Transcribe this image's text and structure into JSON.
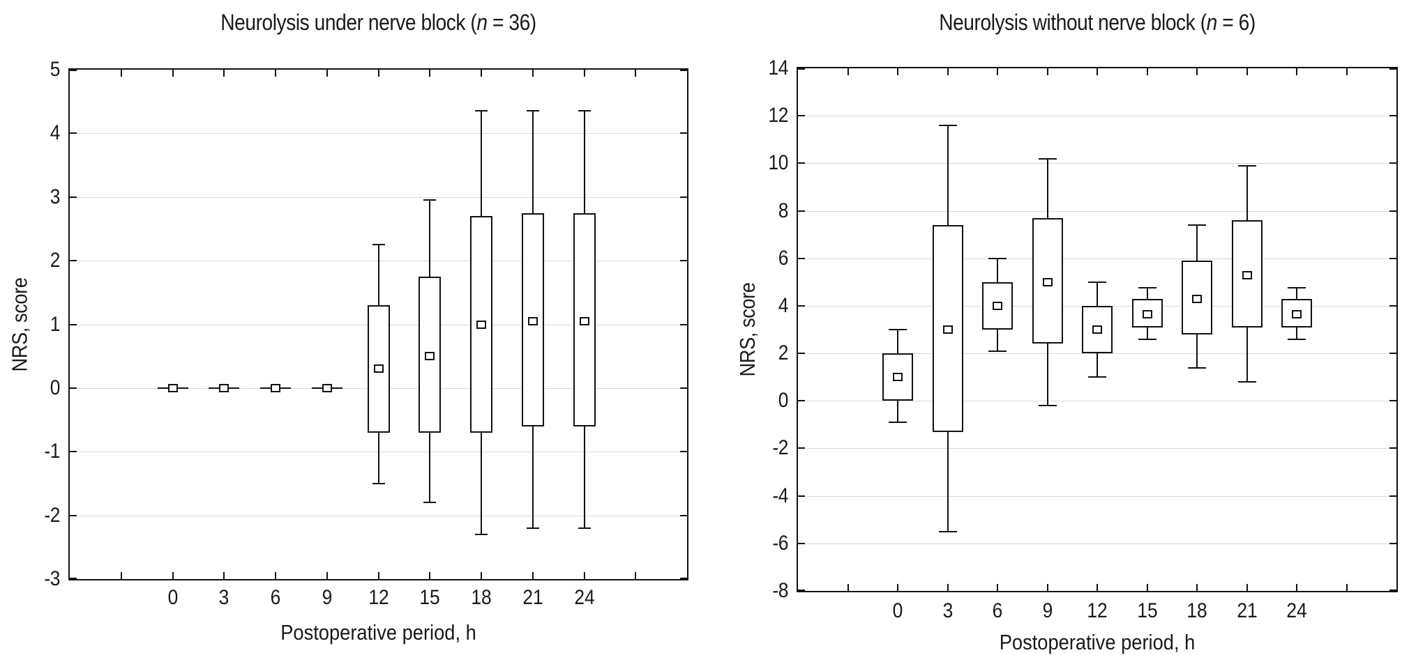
{
  "figure": {
    "background": "#ffffff",
    "line_color": "#111111",
    "grid_color": "#d9d9d9",
    "text_color": "#1a1a1a"
  },
  "chart_data": [
    {
      "type": "boxplot",
      "title": {
        "pre": "Neurolysis under nerve block (",
        "var": "n",
        "post": " = 36)"
      },
      "xlabel": "Postoperative period, h",
      "ylabel": "NRS, score",
      "ylim": [
        -3,
        5
      ],
      "ytick_step": 1,
      "grid": "horizontal",
      "legend": null,
      "ytick_labels": [
        "5",
        "4",
        "3",
        "2",
        "1",
        "0",
        "-1",
        "-2",
        "-3"
      ],
      "xtick_labels": [
        "0",
        "3",
        "6",
        "9",
        "12",
        "15",
        "18",
        "21",
        "24"
      ],
      "boxes": [
        {
          "x": "0",
          "low": 0,
          "q1": 0,
          "median": 0,
          "q3": 0,
          "high": 0
        },
        {
          "x": "3",
          "low": 0,
          "q1": 0,
          "median": 0,
          "q3": 0,
          "high": 0
        },
        {
          "x": "6",
          "low": 0,
          "q1": 0,
          "median": 0,
          "q3": 0,
          "high": 0
        },
        {
          "x": "9",
          "low": 0,
          "q1": 0,
          "median": 0,
          "q3": 0,
          "high": 0
        },
        {
          "x": "12",
          "low": -1.5,
          "q1": -0.7,
          "median": 0.3,
          "q3": 1.3,
          "high": 2.25
        },
        {
          "x": "15",
          "low": -1.8,
          "q1": -0.7,
          "median": 0.5,
          "q3": 1.75,
          "high": 2.95
        },
        {
          "x": "18",
          "low": -2.3,
          "q1": -0.7,
          "median": 1.0,
          "q3": 2.7,
          "high": 4.35
        },
        {
          "x": "21",
          "low": -2.2,
          "q1": -0.6,
          "median": 1.05,
          "q3": 2.75,
          "high": 4.35
        },
        {
          "x": "24",
          "low": -2.2,
          "q1": -0.6,
          "median": 1.05,
          "q3": 2.75,
          "high": 4.35
        }
      ]
    },
    {
      "type": "boxplot",
      "title": {
        "pre": "Neurolysis without nerve block (",
        "var": "n",
        "post": " = 6)"
      },
      "xlabel": "Postoperative period, h",
      "ylabel": "NRS, score",
      "ylim": [
        -8,
        14
      ],
      "ytick_step": 2,
      "grid": "horizontal",
      "legend": null,
      "ytick_labels": [
        "14",
        "12",
        "10",
        "8",
        "6",
        "4",
        "2",
        "0",
        "-2",
        "-4",
        "-6",
        "-8"
      ],
      "xtick_labels": [
        "0",
        "3",
        "6",
        "9",
        "12",
        "15",
        "18",
        "21",
        "24"
      ],
      "boxes": [
        {
          "x": "0",
          "low": -0.9,
          "q1": 0.0,
          "median": 1.0,
          "q3": 2.0,
          "high": 3.0
        },
        {
          "x": "3",
          "low": -5.5,
          "q1": -1.3,
          "median": 3.0,
          "q3": 7.4,
          "high": 11.6
        },
        {
          "x": "6",
          "low": 2.1,
          "q1": 3.0,
          "median": 4.0,
          "q3": 5.0,
          "high": 6.0
        },
        {
          "x": "9",
          "low": -0.2,
          "q1": 2.4,
          "median": 5.0,
          "q3": 7.7,
          "high": 10.2
        },
        {
          "x": "12",
          "low": 1.0,
          "q1": 2.0,
          "median": 3.0,
          "q3": 4.0,
          "high": 5.0
        },
        {
          "x": "15",
          "low": 2.6,
          "q1": 3.1,
          "median": 3.65,
          "q3": 4.3,
          "high": 4.75
        },
        {
          "x": "18",
          "low": 1.4,
          "q1": 2.8,
          "median": 4.3,
          "q3": 5.9,
          "high": 7.4
        },
        {
          "x": "21",
          "low": 0.8,
          "q1": 3.1,
          "median": 5.3,
          "q3": 7.6,
          "high": 9.9
        },
        {
          "x": "24",
          "low": 2.6,
          "q1": 3.1,
          "median": 3.65,
          "q3": 4.3,
          "high": 4.75
        }
      ]
    }
  ]
}
